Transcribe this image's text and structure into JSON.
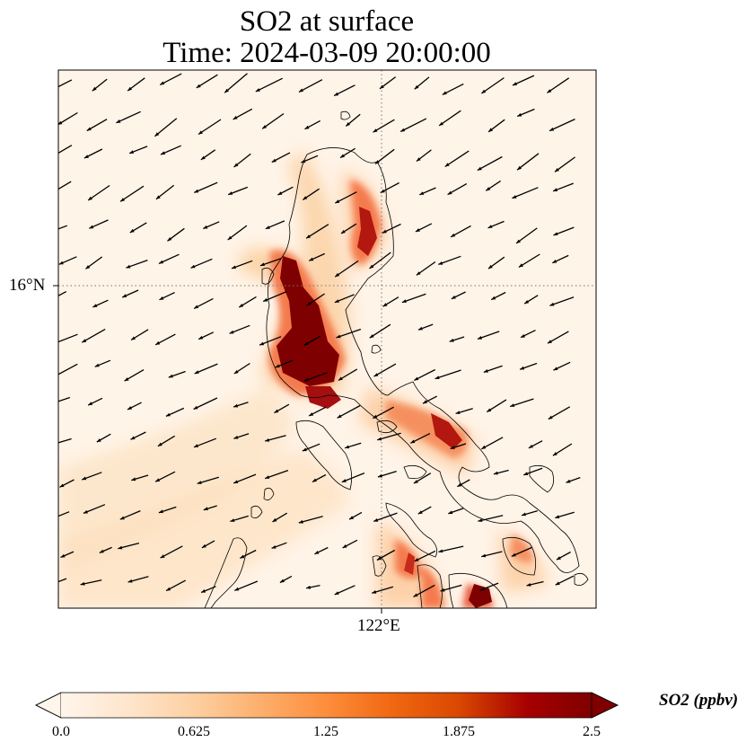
{
  "title": {
    "line1": "SO2 at surface",
    "line2": "Time: 2024-03-09 20:00:00"
  },
  "axes": {
    "lat_label": "16°N",
    "lon_label": "122°E",
    "gridlines": "dotted",
    "lat_gridline": 16,
    "lon_gridline": 122
  },
  "colorbar": {
    "label": "SO2 (ppbv)",
    "ticks": [
      "0.0",
      "0.625",
      "1.25",
      "1.875",
      "2.5"
    ],
    "min": 0.0,
    "max": 2.5,
    "extend": "both",
    "colormap": [
      "#fff5eb",
      "#fee6ce",
      "#fdd0a2",
      "#fdae6b",
      "#fd8d3c",
      "#f16913",
      "#d94801",
      "#a60000",
      "#7f0000"
    ]
  },
  "field": {
    "variable": "SO2",
    "level": "surface",
    "wind_vectors": true,
    "coastline_color": "#000000"
  }
}
